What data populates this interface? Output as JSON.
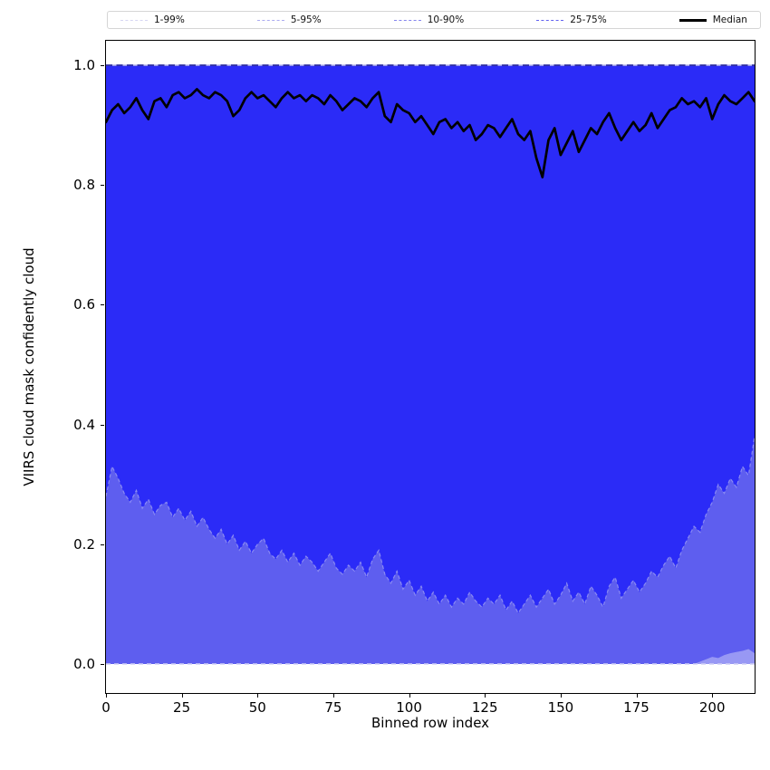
{
  "figure_title": "",
  "axes": {
    "x": {
      "label": "Binned row index",
      "ticks": [
        0,
        25,
        50,
        75,
        100,
        125,
        150,
        175,
        200
      ],
      "range": [
        0,
        214
      ]
    },
    "y": {
      "label": "VIIRS cloud mask confidently cloud",
      "tick_labels": [
        "0.0",
        "0.2",
        "0.4",
        "0.6",
        "0.8",
        "1.0"
      ],
      "tick_values": [
        0.0,
        0.2,
        0.4,
        0.6,
        0.8,
        1.0
      ],
      "range": [
        -0.048,
        1.041
      ]
    }
  },
  "legend": {
    "items": [
      {
        "label": "1-99%",
        "color": "#d6d6f3",
        "style": "dashed"
      },
      {
        "label": "5-95%",
        "color": "#ababf0",
        "style": "dashed"
      },
      {
        "label": "10-90%",
        "color": "#8585ee",
        "style": "dashed"
      },
      {
        "label": "25-75%",
        "color": "#6262f0",
        "style": "dashed"
      },
      {
        "label": "Median",
        "color": "#000000",
        "style": "solid"
      }
    ]
  },
  "colors": {
    "band_25_75_fill": "#2b2bf7",
    "band_10_90_fill": "#5e5eef",
    "band_5_95_fill": "#9898f4",
    "band_1_99_fill": "#cfcff5",
    "p25_edge": "#8a8af2",
    "top_line_dash": "#1b1b96",
    "top_line_underlay": "#b4b4ea",
    "zero_line": "#cfcff5",
    "median_line": "#000000"
  },
  "chart_data": {
    "type": "area",
    "title": "",
    "xlabel": "Binned row index",
    "ylabel": "VIIRS cloud mask confidently cloud",
    "xlim": [
      0,
      214
    ],
    "ylim": [
      -0.048,
      1.041
    ],
    "grid": false,
    "legend_position": "top, horizontal, 5 columns",
    "description": "Percentile bands of VIIRS confidently-cloud fraction per binned row index. Upper percentiles (75th, 90th, 95th, 99th) saturate at 1.0 across all x; 1st and 5th percentiles are 0 across all x; 10th percentile is 0 except a small rise near the right edge.",
    "x": [
      0,
      2,
      4,
      6,
      8,
      10,
      12,
      14,
      16,
      18,
      20,
      22,
      24,
      26,
      28,
      30,
      32,
      34,
      36,
      38,
      40,
      42,
      44,
      46,
      48,
      50,
      52,
      54,
      56,
      58,
      60,
      62,
      64,
      66,
      68,
      70,
      72,
      74,
      76,
      78,
      80,
      82,
      84,
      86,
      88,
      90,
      92,
      94,
      96,
      98,
      100,
      102,
      104,
      106,
      108,
      110,
      112,
      114,
      116,
      118,
      120,
      122,
      124,
      126,
      128,
      130,
      132,
      134,
      136,
      138,
      140,
      142,
      144,
      146,
      148,
      150,
      152,
      154,
      156,
      158,
      160,
      162,
      164,
      166,
      168,
      170,
      172,
      174,
      176,
      178,
      180,
      182,
      184,
      186,
      188,
      190,
      192,
      194,
      196,
      198,
      200,
      202,
      204,
      206,
      208,
      210,
      212,
      214
    ],
    "series": [
      {
        "name": "p1",
        "constant": 0.0
      },
      {
        "name": "p5",
        "constant": 0.0
      },
      {
        "name": "p75_p90_p95_p99_upper_bounds",
        "constant": 1.0
      },
      {
        "name": "p10",
        "values": [
          0,
          0,
          0,
          0,
          0,
          0,
          0,
          0,
          0,
          0,
          0,
          0,
          0,
          0,
          0,
          0,
          0,
          0,
          0,
          0,
          0,
          0,
          0,
          0,
          0,
          0,
          0,
          0,
          0,
          0,
          0,
          0,
          0,
          0,
          0,
          0,
          0,
          0,
          0,
          0,
          0,
          0,
          0,
          0,
          0,
          0,
          0,
          0,
          0,
          0,
          0,
          0,
          0,
          0,
          0,
          0,
          0,
          0,
          0,
          0,
          0,
          0,
          0,
          0,
          0,
          0,
          0,
          0,
          0,
          0,
          0,
          0,
          0,
          0,
          0,
          0,
          0,
          0,
          0,
          0,
          0,
          0,
          0,
          0,
          0,
          0,
          0,
          0,
          0,
          0,
          0,
          0,
          0,
          0,
          0,
          0,
          0,
          0,
          0.004,
          0.008,
          0.012,
          0.01,
          0.015,
          0.018,
          0.02,
          0.022,
          0.025,
          0.018
        ]
      },
      {
        "name": "p25",
        "values": [
          0.28,
          0.33,
          0.31,
          0.285,
          0.27,
          0.29,
          0.26,
          0.275,
          0.25,
          0.265,
          0.27,
          0.245,
          0.26,
          0.24,
          0.255,
          0.23,
          0.245,
          0.225,
          0.21,
          0.225,
          0.2,
          0.215,
          0.19,
          0.205,
          0.185,
          0.2,
          0.21,
          0.185,
          0.175,
          0.19,
          0.17,
          0.185,
          0.165,
          0.18,
          0.17,
          0.155,
          0.17,
          0.185,
          0.16,
          0.15,
          0.165,
          0.155,
          0.17,
          0.145,
          0.175,
          0.19,
          0.15,
          0.135,
          0.155,
          0.125,
          0.14,
          0.115,
          0.13,
          0.105,
          0.12,
          0.1,
          0.115,
          0.095,
          0.11,
          0.1,
          0.12,
          0.105,
          0.095,
          0.11,
          0.1,
          0.115,
          0.09,
          0.105,
          0.085,
          0.1,
          0.115,
          0.095,
          0.11,
          0.125,
          0.1,
          0.115,
          0.135,
          0.105,
          0.12,
          0.1,
          0.13,
          0.115,
          0.095,
          0.13,
          0.145,
          0.11,
          0.125,
          0.14,
          0.12,
          0.135,
          0.155,
          0.145,
          0.165,
          0.18,
          0.16,
          0.19,
          0.21,
          0.23,
          0.22,
          0.25,
          0.27,
          0.3,
          0.285,
          0.31,
          0.295,
          0.33,
          0.315,
          0.38
        ]
      },
      {
        "name": "median",
        "values": [
          0.905,
          0.925,
          0.935,
          0.92,
          0.93,
          0.945,
          0.925,
          0.91,
          0.94,
          0.945,
          0.93,
          0.95,
          0.955,
          0.945,
          0.95,
          0.96,
          0.95,
          0.945,
          0.955,
          0.95,
          0.94,
          0.915,
          0.925,
          0.945,
          0.955,
          0.945,
          0.95,
          0.94,
          0.93,
          0.945,
          0.955,
          0.945,
          0.95,
          0.94,
          0.95,
          0.945,
          0.935,
          0.95,
          0.94,
          0.925,
          0.935,
          0.945,
          0.94,
          0.93,
          0.945,
          0.955,
          0.915,
          0.905,
          0.935,
          0.925,
          0.92,
          0.905,
          0.915,
          0.9,
          0.885,
          0.905,
          0.91,
          0.895,
          0.905,
          0.89,
          0.9,
          0.875,
          0.885,
          0.9,
          0.895,
          0.88,
          0.895,
          0.91,
          0.885,
          0.875,
          0.89,
          0.845,
          0.813,
          0.875,
          0.895,
          0.85,
          0.87,
          0.89,
          0.855,
          0.875,
          0.895,
          0.885,
          0.905,
          0.92,
          0.895,
          0.875,
          0.89,
          0.905,
          0.89,
          0.9,
          0.92,
          0.895,
          0.91,
          0.925,
          0.93,
          0.945,
          0.935,
          0.94,
          0.93,
          0.945,
          0.91,
          0.935,
          0.95,
          0.94,
          0.935,
          0.945,
          0.955,
          0.94
        ]
      }
    ]
  }
}
